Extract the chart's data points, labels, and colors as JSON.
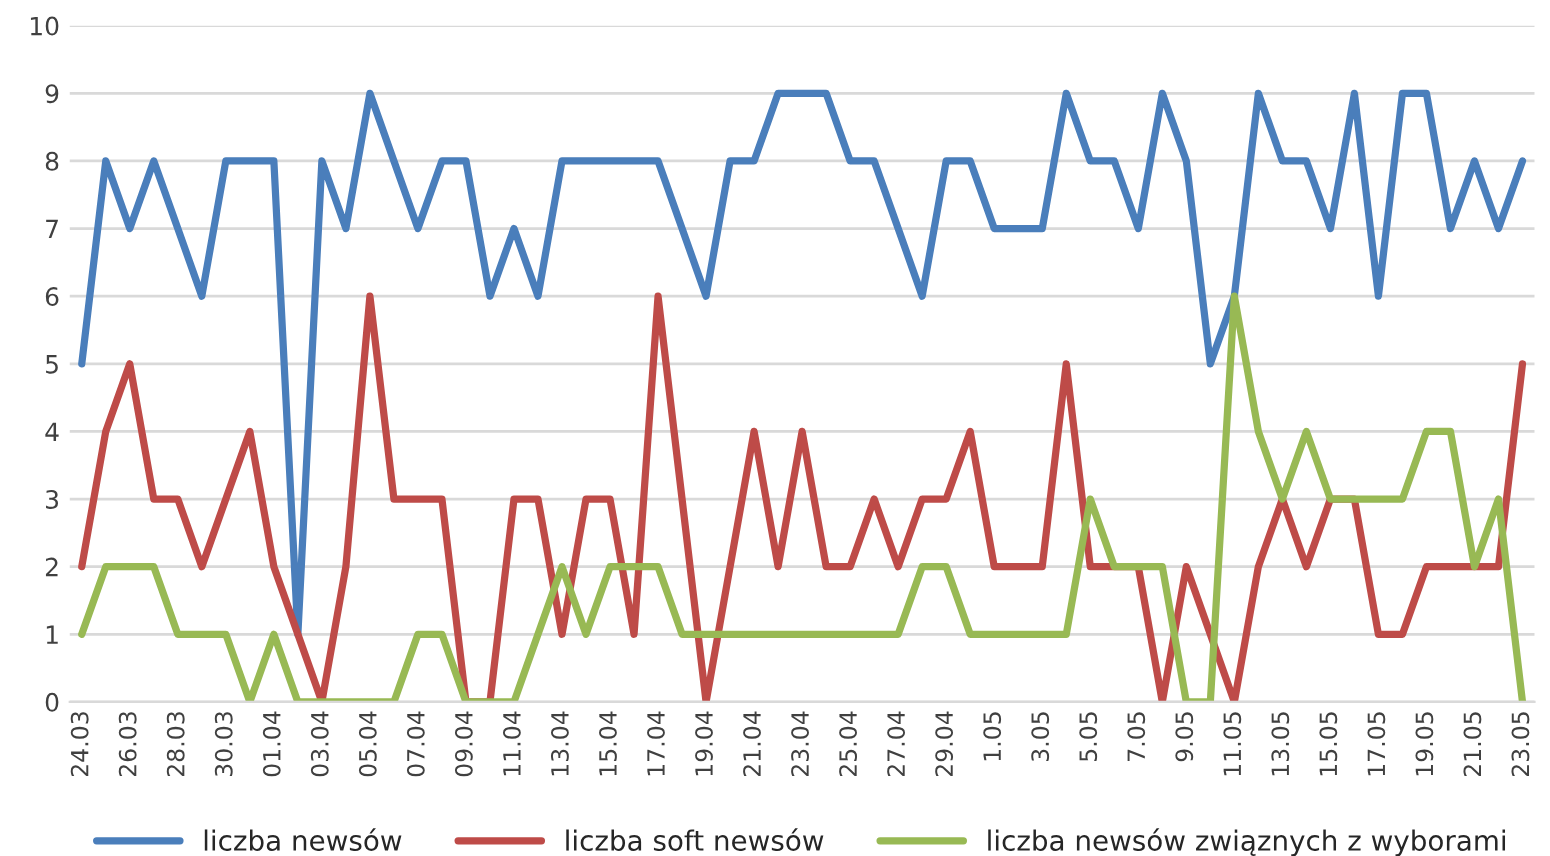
{
  "chart_data": {
    "type": "line",
    "categories": [
      "24.03",
      null,
      "26.03",
      null,
      "28.03",
      null,
      "30.03",
      null,
      "01.04",
      null,
      "03.04",
      null,
      "05.04",
      null,
      "07.04",
      null,
      "09.04",
      null,
      "11.04",
      null,
      "13.04",
      null,
      "15.04",
      null,
      "17.04",
      null,
      "19.04",
      null,
      "21.04",
      null,
      "23.04",
      null,
      "25.04",
      null,
      "27.04",
      null,
      "29.04",
      null,
      "1.05",
      null,
      "3.05",
      null,
      "5.05",
      null,
      "7.05",
      null,
      "9.05",
      null,
      "11.05",
      null,
      "13.05",
      null,
      "15.05",
      null,
      "17.05",
      null,
      "19.05",
      null,
      "21.05",
      null,
      "23.05"
    ],
    "series": [
      {
        "name": "liczba newsów",
        "color": "#4a7ebb",
        "values": [
          5,
          8,
          7,
          8,
          7,
          6,
          8,
          8,
          8,
          1,
          8,
          7,
          9,
          8,
          7,
          8,
          8,
          6,
          7,
          6,
          8,
          8,
          8,
          8,
          8,
          7,
          6,
          8,
          8,
          9,
          9,
          9,
          8,
          8,
          7,
          6,
          8,
          8,
          7,
          7,
          7,
          9,
          8,
          8,
          7,
          9,
          8,
          5,
          6,
          9,
          8,
          8,
          7,
          9,
          6,
          9,
          9,
          7,
          8,
          7,
          8
        ]
      },
      {
        "name": "liczba soft newsów",
        "color": "#be4b48",
        "values": [
          2,
          4,
          5,
          3,
          3,
          2,
          3,
          4,
          2,
          1,
          0,
          2,
          6,
          3,
          3,
          3,
          0,
          0,
          3,
          3,
          1,
          3,
          3,
          1,
          6,
          3,
          0,
          2,
          4,
          2,
          4,
          2,
          2,
          3,
          2,
          3,
          3,
          4,
          2,
          2,
          2,
          5,
          2,
          2,
          2,
          0,
          2,
          1,
          0,
          2,
          3,
          2,
          3,
          3,
          1,
          1,
          2,
          2,
          2,
          2,
          5
        ]
      },
      {
        "name": "liczba newsów związnych z wyborami",
        "color": "#98b954",
        "values": [
          1,
          2,
          2,
          2,
          1,
          1,
          1,
          0,
          1,
          0,
          0,
          0,
          0,
          0,
          1,
          1,
          0,
          0,
          0,
          1,
          2,
          1,
          2,
          2,
          2,
          1,
          1,
          1,
          1,
          1,
          1,
          1,
          1,
          1,
          1,
          2,
          2,
          1,
          1,
          1,
          1,
          1,
          3,
          2,
          2,
          2,
          0,
          0,
          6,
          4,
          3,
          4,
          3,
          3,
          3,
          3,
          4,
          4,
          2,
          3,
          0
        ]
      }
    ],
    "ylim": [
      0,
      10
    ],
    "yticks": [
      0,
      1,
      2,
      3,
      4,
      5,
      6,
      7,
      8,
      9,
      10
    ],
    "grid": "y",
    "legend": "bottom",
    "marker": "none",
    "line_style": "solid"
  }
}
